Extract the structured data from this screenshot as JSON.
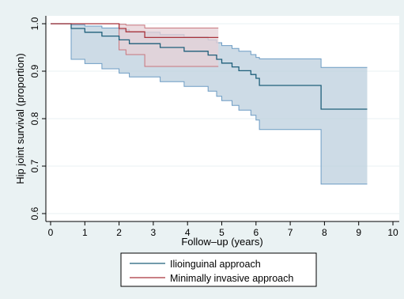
{
  "chart_data": {
    "type": "line",
    "subtype": "kaplan-meier survival with confidence bands",
    "xlabel": "Follow–up (years)",
    "ylabel": "Hip joint survival (proportion)",
    "xlim": [
      0,
      10
    ],
    "ylim": [
      0.6,
      1.0
    ],
    "x_ticks": [
      0,
      1,
      2,
      3,
      4,
      5,
      6,
      7,
      8,
      9,
      10
    ],
    "y_ticks": [
      0.6,
      0.7,
      0.8,
      0.9,
      1.0
    ],
    "y_tick_labels": [
      "0.6",
      "0.7",
      "0.8",
      "0.9",
      "1.0"
    ],
    "grid": "horizontal",
    "legend_position": "bottom",
    "series": [
      {
        "name": "Ilioinguinal approach",
        "color": "#1f5f7a",
        "band_fill": "#bccfde",
        "band_stroke": "#6d9cc4",
        "steps": [
          [
            0,
            1.0
          ],
          [
            0.6,
            0.99
          ],
          [
            1.0,
            0.982
          ],
          [
            1.5,
            0.974
          ],
          [
            2.0,
            0.966
          ],
          [
            2.3,
            0.958
          ],
          [
            3.2,
            0.95
          ],
          [
            3.9,
            0.942
          ],
          [
            4.6,
            0.934
          ],
          [
            4.85,
            0.925
          ],
          [
            5.0,
            0.917
          ],
          [
            5.3,
            0.909
          ],
          [
            5.5,
            0.901
          ],
          [
            5.85,
            0.893
          ],
          [
            6.0,
            0.885
          ],
          [
            6.1,
            0.87
          ],
          [
            7.9,
            0.82
          ],
          [
            9.25,
            0.82
          ]
        ],
        "lower": [
          [
            0,
            1.0
          ],
          [
            0.6,
            0.925
          ],
          [
            1.0,
            0.916
          ],
          [
            1.5,
            0.905
          ],
          [
            2.0,
            0.896
          ],
          [
            2.3,
            0.888
          ],
          [
            3.2,
            0.878
          ],
          [
            3.9,
            0.868
          ],
          [
            4.6,
            0.858
          ],
          [
            4.85,
            0.847
          ],
          [
            5.0,
            0.838
          ],
          [
            5.3,
            0.828
          ],
          [
            5.5,
            0.818
          ],
          [
            5.85,
            0.807
          ],
          [
            6.0,
            0.797
          ],
          [
            6.1,
            0.777
          ],
          [
            7.9,
            0.662
          ],
          [
            9.25,
            0.662
          ]
        ],
        "upper": [
          [
            0,
            1.0
          ],
          [
            0.6,
            0.998
          ],
          [
            1.0,
            0.995
          ],
          [
            1.5,
            0.991
          ],
          [
            2.0,
            0.987
          ],
          [
            2.3,
            0.982
          ],
          [
            3.2,
            0.977
          ],
          [
            3.9,
            0.972
          ],
          [
            4.6,
            0.966
          ],
          [
            4.85,
            0.96
          ],
          [
            5.0,
            0.954
          ],
          [
            5.3,
            0.948
          ],
          [
            5.5,
            0.942
          ],
          [
            5.85,
            0.935
          ],
          [
            6.0,
            0.929
          ],
          [
            6.1,
            0.926
          ],
          [
            7.9,
            0.908
          ],
          [
            9.25,
            0.908
          ]
        ]
      },
      {
        "name": "Minimally invasive approach",
        "color": "#a9343c",
        "band_fill": "#e6d0d6",
        "band_stroke": "#c8747c",
        "steps": [
          [
            0,
            1.0
          ],
          [
            1.1,
            1.0
          ],
          [
            2.0,
            0.99
          ],
          [
            2.2,
            0.983
          ],
          [
            2.75,
            0.971
          ],
          [
            4.9,
            0.971
          ]
        ],
        "lower": [
          [
            0,
            1.0
          ],
          [
            1.1,
            1.0
          ],
          [
            2.0,
            0.945
          ],
          [
            2.2,
            0.935
          ],
          [
            2.75,
            0.91
          ],
          [
            4.9,
            0.91
          ]
        ],
        "upper": [
          [
            0,
            1.0
          ],
          [
            1.1,
            1.0
          ],
          [
            2.0,
            0.999
          ],
          [
            2.2,
            0.997
          ],
          [
            2.75,
            0.991
          ],
          [
            4.9,
            0.991
          ]
        ]
      }
    ]
  },
  "colors": {
    "outer_background": "#eaf2f3",
    "plot_background": "#ffffff",
    "grid": "#eaf2f3"
  }
}
